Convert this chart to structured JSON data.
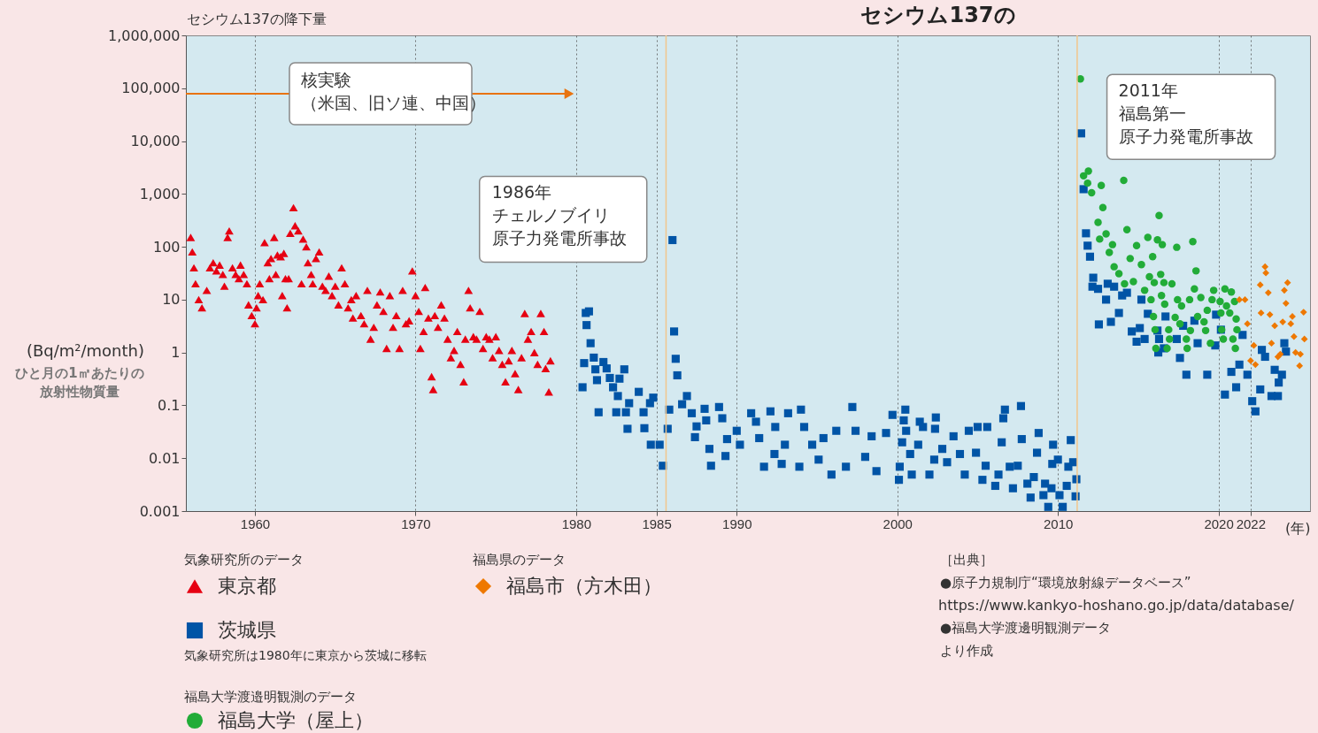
{
  "chart_data": {
    "type": "scatter",
    "title": "セシウム137の",
    "ylabel": "セシウム137の降下量",
    "xlabel": "(年)",
    "xlim": [
      1955.7,
      2025.7
    ],
    "ylim": [
      0.001,
      1000000
    ],
    "log": "y",
    "grid": "x",
    "legend": "bottom",
    "xticks": [
      1960,
      1970,
      1980,
      1985,
      1990,
      2000,
      2010,
      2020,
      2022
    ],
    "yticks": [
      0.001,
      0.01,
      0.1,
      1,
      10,
      100,
      {
        "value": 1000,
        "label": "1,000"
      },
      {
        "value": 10000,
        "label": "10,000"
      },
      {
        "value": 100000,
        "label": "100,000"
      },
      {
        "value": 1000000,
        "label": "1,000,000"
      }
    ],
    "ref_lines": [
      {
        "axis": "x",
        "value": 1985.6,
        "color": "#f2c68c"
      },
      {
        "axis": "x",
        "value": 2011.2,
        "color": "#f2c68c"
      }
    ],
    "annotations": [
      "核実験（米国、旧ソ連、中国）",
      {
        "text": "1986年チェルノブイリ原子力発電所事故",
        "x": 1986.0,
        "y": 134
      },
      {
        "text": "2011年福島第一原子力発電所事故",
        "x": 2011.4,
        "y": 150000
      },
      "(Bq/m²/month)",
      "ひと月の1㎡あたりの放射性物質量",
      "気象研究所のデータ",
      "福島県のデータ",
      "福島大学渡邉明観測のデータ",
      "気象研究所は1980年に東京から茨城に移転",
      "［出典］",
      "●原子力規制庁“環境放射線データベース”",
      "https://www.kankyo-hoshano.go.jp/data/database/",
      "●福島大学渡邊明観測データ",
      "より作成"
    ],
    "series": [
      {
        "name": "東京都",
        "color": "#e60012",
        "marker": "triangle",
        "x": [
          1956.0,
          1956.1,
          1956.2,
          1956.3,
          1956.5,
          1956.7,
          1957.0,
          1957.2,
          1957.4,
          1957.6,
          1957.8,
          1958.0,
          1958.1,
          1958.3,
          1958.4,
          1958.6,
          1958.8,
          1959.0,
          1959.1,
          1959.3,
          1959.5,
          1959.6,
          1959.8,
          1960.0,
          1960.1,
          1960.2,
          1960.3,
          1960.5,
          1960.6,
          1960.8,
          1960.9,
          1961.0,
          1961.2,
          1961.3,
          1961.4,
          1961.6,
          1961.7,
          1961.8,
          1961.9,
          1962.0,
          1962.1,
          1962.2,
          1962.4,
          1962.5,
          1962.7,
          1962.9,
          1963.0,
          1963.2,
          1963.3,
          1963.5,
          1963.6,
          1963.8,
          1964.0,
          1964.2,
          1964.4,
          1964.6,
          1964.8,
          1965.0,
          1965.2,
          1965.4,
          1965.6,
          1965.8,
          1966.0,
          1966.1,
          1966.3,
          1966.6,
          1966.8,
          1967.0,
          1967.2,
          1967.4,
          1967.6,
          1967.8,
          1968.0,
          1968.2,
          1968.4,
          1968.6,
          1968.8,
          1969.0,
          1969.2,
          1969.4,
          1969.6,
          1969.8,
          1970.0,
          1970.2,
          1970.3,
          1970.5,
          1970.6,
          1970.8,
          1971.0,
          1971.1,
          1971.2,
          1971.4,
          1971.6,
          1971.8,
          1972.0,
          1972.2,
          1972.4,
          1972.6,
          1972.8,
          1973.0,
          1973.1,
          1973.3,
          1973.4,
          1973.6,
          1973.8,
          1974.0,
          1974.2,
          1974.4,
          1974.6,
          1974.8,
          1975.0,
          1975.2,
          1975.4,
          1975.6,
          1975.8,
          1976.0,
          1976.2,
          1976.4,
          1976.6,
          1976.8,
          1977.0,
          1977.2,
          1977.4,
          1977.6,
          1977.8,
          1978.0,
          1978.1,
          1978.3,
          1978.4
        ],
        "values": [
          150,
          80,
          40,
          20,
          10,
          7,
          15,
          40,
          50,
          35,
          45,
          30,
          18,
          150,
          200,
          40,
          30,
          25,
          45,
          30,
          20,
          8,
          5,
          3.5,
          7,
          12,
          20,
          10,
          120,
          50,
          25,
          60,
          150,
          30,
          70,
          65,
          12,
          75,
          25,
          7,
          25,
          180,
          550,
          250,
          200,
          20,
          140,
          100,
          50,
          30,
          20,
          60,
          80,
          18,
          15,
          28,
          12,
          18,
          8,
          40,
          20,
          7,
          10,
          4.5,
          12,
          5,
          3.5,
          15,
          1.8,
          3,
          8,
          14,
          6,
          1.2,
          12,
          3,
          5,
          1.2,
          15,
          3.5,
          4,
          35,
          12,
          6,
          1.2,
          2.5,
          17,
          4.5,
          0.35,
          0.2,
          5,
          3,
          8,
          4.5,
          1.8,
          0.8,
          1.1,
          2.5,
          0.6,
          0.28,
          1.8,
          15,
          7,
          2,
          1.8,
          6,
          1.2,
          2,
          1.8,
          0.8,
          2,
          1.1,
          0.6,
          0.28,
          0.7,
          1.1,
          0.4,
          0.2,
          0.8,
          5.5,
          1.8,
          2.5,
          1,
          0.6,
          5.5,
          2.5,
          0.5,
          0.18,
          0.7
        ]
      },
      {
        "name": "茨城県",
        "color": "#0054a6",
        "marker": "square",
        "x": [
          1980.4,
          1980.5,
          1980.6,
          1980.65,
          1980.8,
          1980.9,
          1981.1,
          1981.2,
          1981.3,
          1981.4,
          1981.7,
          1981.9,
          1982.1,
          1982.3,
          1982.5,
          1982.6,
          1982.7,
          1983.0,
          1983.1,
          1983.2,
          1983.3,
          1983.9,
          1984.2,
          1984.25,
          1984.6,
          1984.65,
          1984.8,
          1985.2,
          1985.4,
          1985.7,
          1985.8,
          1986.0,
          1986.1,
          1986.2,
          1986.3,
          1986.6,
          1986.9,
          1987.2,
          1987.4,
          1987.5,
          1988.0,
          1988.1,
          1988.3,
          1988.4,
          1988.9,
          1989.1,
          1989.3,
          1989.4,
          1990.0,
          1990.2,
          1990.9,
          1991.2,
          1991.4,
          1991.7,
          1992.1,
          1992.35,
          1992.4,
          1992.8,
          1993.0,
          1993.2,
          1993.9,
          1994.0,
          1994.2,
          1994.7,
          1995.1,
          1995.4,
          1995.9,
          1996.2,
          1996.8,
          1997.2,
          1997.4,
          1998.0,
          1998.4,
          1998.7,
          1999.3,
          1999.7,
          2000.1,
          2000.15,
          2000.3,
          2000.4,
          2000.5,
          2000.55,
          2000.8,
          2000.9,
          2001.3,
          2001.4,
          2001.6,
          2002.0,
          2002.3,
          2002.35,
          2002.4,
          2002.8,
          2003.1,
          2003.5,
          2003.9,
          2004.2,
          2004.45,
          2004.9,
          2005.0,
          2005.3,
          2005.5,
          2005.6,
          2006.1,
          2006.3,
          2006.5,
          2006.6,
          2006.7,
          2007.0,
          2007.2,
          2007.5,
          2007.7,
          2007.75,
          2008.1,
          2008.3,
          2008.5,
          2008.7,
          2008.8,
          2009.1,
          2009.2,
          2009.4,
          2009.6,
          2009.65,
          2009.7,
          2010.0,
          2010.1,
          2010.3,
          2010.55,
          2010.65,
          2010.8,
          2010.95,
          2011.1,
          2011.15,
          2011.45,
          2011.6,
          2011.75,
          2011.85,
          2012.0,
          2012.15,
          2012.2,
          2012.5,
          2012.55,
          2013.0,
          2013.1,
          2013.3,
          2013.5,
          2013.8,
          2014.0,
          2014.3,
          2014.6,
          2014.9,
          2015.1,
          2015.2,
          2015.4,
          2015.6,
          2016.2,
          2016.25,
          2016.3,
          2016.6,
          2016.7,
          2017.4,
          2017.6,
          2017.8,
          2018.0,
          2018.5,
          2018.7,
          2019.3,
          2019.8,
          2019.85,
          2020.15,
          2020.4,
          2020.8,
          2021.1,
          2021.3,
          2021.5,
          2021.8,
          2022.1,
          2022.3,
          2022.6,
          2022.7,
          2022.9,
          2023.3,
          2023.5,
          2023.7,
          2023.75,
          2023.95,
          2024.1,
          2024.2
        ],
        "values": [
          0.22,
          0.63,
          5.6,
          3.3,
          6,
          1.5,
          0.8,
          0.48,
          0.3,
          0.074,
          0.66,
          0.5,
          0.33,
          0.22,
          0.074,
          0.15,
          0.32,
          0.48,
          0.074,
          0.036,
          0.11,
          0.18,
          0.074,
          0.037,
          0.11,
          0.018,
          0.14,
          0.018,
          0.0072,
          0.036,
          0.083,
          134,
          2.5,
          0.76,
          0.37,
          0.105,
          0.15,
          0.071,
          0.025,
          0.04,
          0.086,
          0.052,
          0.015,
          0.0072,
          0.093,
          0.057,
          0.011,
          0.023,
          0.033,
          0.018,
          0.071,
          0.049,
          0.024,
          0.0069,
          0.077,
          0.012,
          0.039,
          0.0078,
          0.018,
          0.071,
          0.0069,
          0.083,
          0.039,
          0.018,
          0.0094,
          0.024,
          0.0049,
          0.033,
          0.0069,
          0.093,
          0.033,
          0.0106,
          0.026,
          0.0057,
          0.03,
          0.066,
          0.0039,
          0.0069,
          0.02,
          0.052,
          0.083,
          0.033,
          0.012,
          0.0049,
          0.018,
          0.049,
          0.039,
          0.0049,
          0.0094,
          0.036,
          0.059,
          0.015,
          0.0084,
          0.026,
          0.012,
          0.0049,
          0.033,
          0.0127,
          0.039,
          0.0039,
          0.0072,
          0.039,
          0.003,
          0.0049,
          0.02,
          0.057,
          0.083,
          0.0069,
          0.0027,
          0.0072,
          0.097,
          0.023,
          0.0033,
          0.0018,
          0.0044,
          0.0127,
          0.03,
          0.002,
          0.0033,
          0.0012,
          0.0027,
          0.0078,
          0.018,
          0.0094,
          0.002,
          0.0012,
          0.003,
          0.0069,
          0.022,
          0.0084,
          0.0019,
          0.004,
          14000,
          1230,
          180,
          105,
          65,
          17.6,
          26,
          16,
          3.4,
          10,
          20,
          3.8,
          17.6,
          5.6,
          12,
          13.5,
          2.5,
          1.6,
          2.9,
          10,
          1.8,
          5.4,
          2.6,
          1.0,
          1.8,
          1.2,
          4.8,
          1.8,
          0.79,
          3.2,
          0.38,
          4.0,
          1.5,
          0.38,
          1.36,
          5.2,
          2.7,
          0.16,
          0.43,
          0.22,
          0.59,
          2.15,
          0.38,
          0.12,
          0.077,
          0.2,
          1.12,
          0.83,
          0.15,
          0.47,
          0.15,
          0.27,
          0.38,
          1.5,
          1.04
        ]
      },
      {
        "name": "福島大学（屋上）",
        "color": "#22ac38",
        "marker": "circle",
        "x": [
          2011.4,
          2011.6,
          2011.85,
          2011.9,
          2012.1,
          2012.5,
          2012.6,
          2012.7,
          2012.8,
          2013.0,
          2013.2,
          2013.4,
          2013.5,
          2013.8,
          2014.1,
          2014.15,
          2014.3,
          2014.5,
          2014.7,
          2014.9,
          2015.2,
          2015.4,
          2015.6,
          2015.7,
          2015.8,
          2015.9,
          2015.95,
          2016.0,
          2016.05,
          2016.1,
          2016.2,
          2016.3,
          2016.4,
          2016.45,
          2016.5,
          2016.6,
          2016.65,
          2016.8,
          2016.9,
          2016.95,
          2017.1,
          2017.3,
          2017.4,
          2017.45,
          2017.6,
          2017.7,
          2018.0,
          2018.05,
          2018.2,
          2018.25,
          2018.4,
          2018.5,
          2018.6,
          2018.7,
          2018.9,
          2019.1,
          2019.2,
          2019.3,
          2019.5,
          2019.6,
          2019.7,
          2020.1,
          2020.15,
          2020.2,
          2020.3,
          2020.4,
          2020.5,
          2020.7,
          2020.8,
          2020.9,
          2021.0,
          2021.05,
          2021.1,
          2021.15
        ],
        "values": [
          150000,
          2200,
          1600,
          2700,
          1050,
          290,
          140,
          1450,
          550,
          175,
          78,
          110,
          42,
          31,
          1800,
          20,
          210,
          60,
          22,
          105,
          46,
          15,
          150,
          27,
          10,
          65,
          4.8,
          21,
          2.7,
          1.2,
          135,
          390,
          30,
          12,
          110,
          21,
          8.2,
          1.2,
          2.7,
          1.8,
          20,
          4.6,
          98,
          10,
          3.5,
          7.6,
          1.8,
          1.2,
          10,
          2.6,
          125,
          16,
          35,
          4.8,
          11,
          3.8,
          2.6,
          6.3,
          1.5,
          10,
          15,
          9.2,
          5.6,
          2.7,
          1.8,
          16,
          7.6,
          5.6,
          14,
          1.8,
          9.2,
          1.2,
          4.3,
          2.7
        ]
      },
      {
        "name": "福島市（方木田）",
        "color": "#ee7800",
        "marker": "diamond",
        "x": [
          2021.3,
          2021.65,
          2021.8,
          2022.0,
          2022.2,
          2022.3,
          2022.6,
          2022.65,
          2022.9,
          2022.95,
          2023.1,
          2023.2,
          2023.3,
          2023.5,
          2023.7,
          2023.85,
          2024.0,
          2024.1,
          2024.2,
          2024.3,
          2024.5,
          2024.6,
          2024.7,
          2024.8,
          2025.05,
          2025.1,
          2025.3,
          2025.35
        ],
        "values": [
          10,
          10,
          3.5,
          0.7,
          1.36,
          0.59,
          19,
          5.6,
          42,
          32,
          13.5,
          5.2,
          1.5,
          3.2,
          0.83,
          0.93,
          3.8,
          15,
          8.5,
          21,
          3.5,
          4.8,
          2.0,
          1.0,
          0.56,
          0.93,
          5.8,
          1.8
        ]
      }
    ]
  }
}
